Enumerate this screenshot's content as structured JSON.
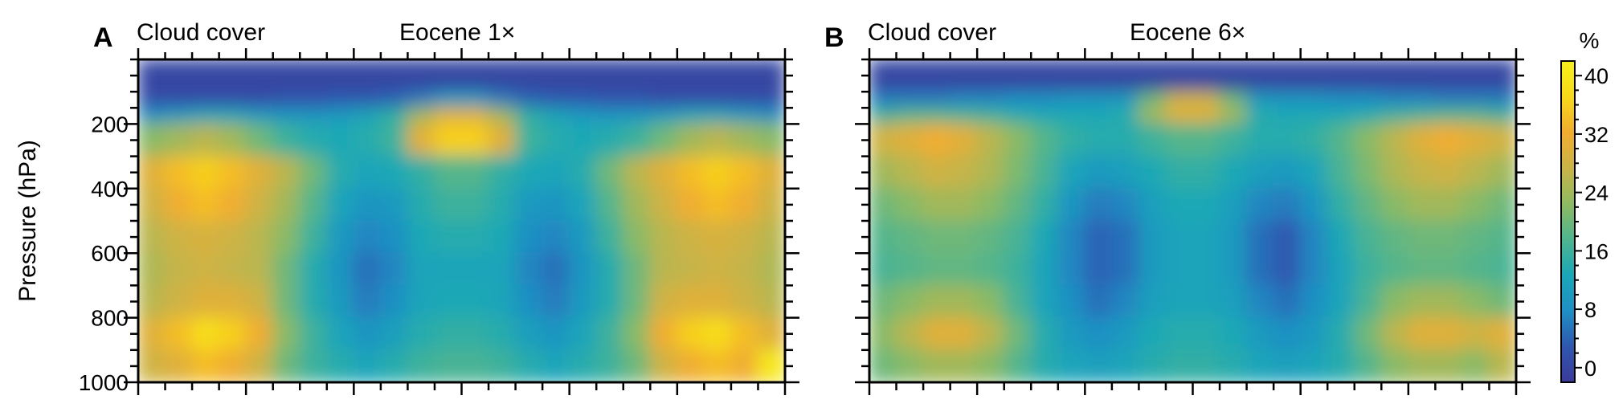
{
  "chart_data": [
    {
      "type": "heatmap",
      "panel_label": "A",
      "title": "Cloud cover",
      "subtitle": "Eocene 1×",
      "ylabel": "Pressure (hPa)",
      "xlabel": "",
      "ylim": [
        1000,
        0
      ],
      "yticks": [
        200,
        400,
        600,
        800,
        1000
      ],
      "x_cells": 24,
      "y_levels": [
        0,
        100,
        150,
        200,
        300,
        400,
        500,
        600,
        700,
        800,
        900,
        1000
      ],
      "values": [
        [
          0,
          0,
          0,
          0,
          0,
          0,
          0,
          0,
          0,
          0,
          0,
          0,
          0,
          0,
          0,
          0,
          0,
          0,
          0,
          0,
          0,
          0,
          0,
          0
        ],
        [
          1,
          1,
          1,
          1,
          1,
          2,
          2,
          3,
          3,
          4,
          6,
          10,
          10,
          6,
          4,
          3,
          3,
          2,
          2,
          1,
          1,
          1,
          1,
          1
        ],
        [
          8,
          10,
          12,
          12,
          10,
          9,
          9,
          10,
          12,
          15,
          24,
          30,
          30,
          24,
          15,
          12,
          10,
          9,
          9,
          10,
          12,
          12,
          10,
          8
        ],
        [
          22,
          24,
          26,
          24,
          20,
          16,
          14,
          13,
          14,
          16,
          30,
          36,
          36,
          30,
          16,
          14,
          13,
          14,
          16,
          20,
          24,
          26,
          24,
          22
        ],
        [
          30,
          34,
          36,
          34,
          30,
          26,
          20,
          14,
          12,
          13,
          15,
          18,
          18,
          15,
          13,
          12,
          14,
          20,
          26,
          30,
          34,
          36,
          34,
          30
        ],
        [
          28,
          32,
          34,
          32,
          28,
          24,
          18,
          12,
          9,
          10,
          14,
          16,
          16,
          14,
          10,
          9,
          12,
          18,
          24,
          28,
          32,
          34,
          32,
          28
        ],
        [
          26,
          28,
          29,
          28,
          26,
          22,
          16,
          10,
          7,
          8,
          13,
          14,
          14,
          13,
          8,
          7,
          10,
          16,
          22,
          26,
          28,
          29,
          28,
          26
        ],
        [
          25,
          27,
          28,
          27,
          26,
          20,
          14,
          9,
          5,
          7,
          12,
          12,
          12,
          12,
          7,
          5,
          9,
          14,
          20,
          26,
          27,
          28,
          27,
          25
        ],
        [
          26,
          28,
          30,
          30,
          28,
          20,
          14,
          10,
          6,
          8,
          12,
          13,
          13,
          12,
          8,
          6,
          10,
          14,
          20,
          28,
          30,
          30,
          28,
          26
        ],
        [
          30,
          34,
          38,
          36,
          32,
          22,
          16,
          12,
          9,
          11,
          14,
          15,
          15,
          14,
          11,
          9,
          12,
          16,
          22,
          32,
          36,
          38,
          34,
          30
        ],
        [
          28,
          30,
          34,
          32,
          28,
          20,
          16,
          14,
          12,
          14,
          16,
          17,
          17,
          16,
          14,
          12,
          14,
          16,
          20,
          28,
          32,
          34,
          32,
          40
        ]
      ]
    },
    {
      "type": "heatmap",
      "panel_label": "B",
      "title": "Cloud cover",
      "subtitle": "Eocene 6×",
      "xlabel": "",
      "ylim": [
        1000,
        0
      ],
      "yticks": [
        200,
        400,
        600,
        800,
        1000
      ],
      "x_cells": 24,
      "y_levels": [
        0,
        100,
        150,
        200,
        300,
        400,
        500,
        600,
        700,
        800,
        900,
        1000
      ],
      "values": [
        [
          0,
          0,
          0,
          0,
          0,
          0,
          0,
          0,
          0,
          0,
          0,
          0,
          0,
          0,
          0,
          0,
          0,
          0,
          0,
          0,
          0,
          0,
          0,
          0
        ],
        [
          6,
          6,
          6,
          7,
          7,
          8,
          8,
          9,
          9,
          10,
          20,
          28,
          28,
          20,
          10,
          9,
          9,
          8,
          8,
          7,
          7,
          6,
          6,
          6
        ],
        [
          16,
          18,
          18,
          17,
          16,
          14,
          13,
          13,
          13,
          14,
          24,
          30,
          30,
          24,
          14,
          13,
          13,
          13,
          14,
          16,
          17,
          18,
          18,
          16
        ],
        [
          28,
          30,
          32,
          30,
          26,
          22,
          18,
          15,
          14,
          14,
          16,
          18,
          18,
          16,
          14,
          14,
          15,
          18,
          22,
          26,
          30,
          32,
          30,
          28
        ],
        [
          24,
          26,
          28,
          27,
          25,
          21,
          17,
          12,
          10,
          11,
          13,
          15,
          15,
          13,
          11,
          10,
          12,
          17,
          21,
          25,
          27,
          28,
          26,
          24
        ],
        [
          20,
          22,
          24,
          24,
          22,
          19,
          15,
          9,
          6,
          7,
          11,
          13,
          13,
          11,
          7,
          6,
          9,
          15,
          19,
          22,
          24,
          24,
          22,
          20
        ],
        [
          18,
          19,
          20,
          20,
          19,
          17,
          13,
          7,
          4,
          5,
          10,
          12,
          12,
          10,
          5,
          3,
          7,
          13,
          17,
          19,
          20,
          20,
          19,
          18
        ],
        [
          17,
          18,
          19,
          19,
          18,
          16,
          12,
          7,
          4,
          5,
          10,
          12,
          12,
          10,
          5,
          3,
          7,
          12,
          16,
          18,
          19,
          19,
          18,
          17
        ],
        [
          20,
          22,
          24,
          24,
          22,
          17,
          12,
          8,
          5,
          7,
          11,
          12,
          12,
          11,
          7,
          5,
          8,
          12,
          17,
          22,
          24,
          24,
          22,
          20
        ],
        [
          22,
          26,
          30,
          30,
          26,
          20,
          14,
          10,
          8,
          10,
          13,
          14,
          14,
          13,
          10,
          8,
          10,
          14,
          20,
          26,
          30,
          30,
          28,
          30
        ],
        [
          20,
          22,
          24,
          24,
          22,
          18,
          14,
          12,
          11,
          12,
          14,
          15,
          15,
          14,
          12,
          11,
          12,
          14,
          18,
          22,
          24,
          24,
          22,
          26
        ]
      ]
    }
  ],
  "colorbar": {
    "unit_label": "%",
    "ticks": [
      0,
      8,
      16,
      24,
      32,
      40
    ],
    "min": -2,
    "max": 42,
    "stops": [
      "#3b3a98",
      "#2f57b0",
      "#1f8fc4",
      "#19a7b8",
      "#4fb58f",
      "#8fba62",
      "#c9b448",
      "#f2ad2f",
      "#f7d91a",
      "#f6f01a"
    ]
  }
}
